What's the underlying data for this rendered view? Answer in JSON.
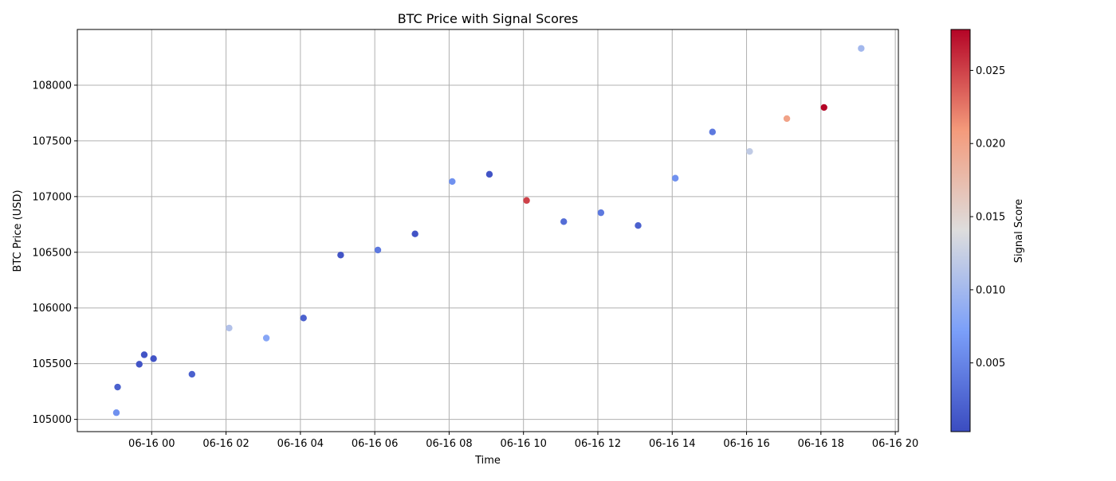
{
  "chart_data": {
    "type": "scatter",
    "title": "BTC Price with Signal Scores",
    "xlabel": "Time",
    "ylabel": "BTC Price (USD)",
    "grid": true,
    "colormap": "coolwarm",
    "colorbar": {
      "label": "Signal Score",
      "range": [
        0.0003,
        0.0278
      ],
      "ticks": [
        0.005,
        0.01,
        0.015,
        0.02,
        0.025
      ],
      "tick_labels": [
        "0.005",
        "0.010",
        "0.015",
        "0.020",
        "0.025"
      ]
    },
    "x_ticks": [
      {
        "value": "2025-06-16 00:00",
        "label": "06-16 00"
      },
      {
        "value": "2025-06-16 02:00",
        "label": "06-16 02"
      },
      {
        "value": "2025-06-16 04:00",
        "label": "06-16 04"
      },
      {
        "value": "2025-06-16 06:00",
        "label": "06-16 06"
      },
      {
        "value": "2025-06-16 08:00",
        "label": "06-16 08"
      },
      {
        "value": "2025-06-16 10:00",
        "label": "06-16 10"
      },
      {
        "value": "2025-06-16 12:00",
        "label": "06-16 12"
      },
      {
        "value": "2025-06-16 14:00",
        "label": "06-16 14"
      },
      {
        "value": "2025-06-16 16:00",
        "label": "06-16 16"
      },
      {
        "value": "2025-06-16 18:00",
        "label": "06-16 18"
      },
      {
        "value": "2025-06-16 20:00",
        "label": "06-16 20"
      }
    ],
    "y_ticks": [
      105000,
      105500,
      106000,
      106500,
      107000,
      107500,
      108000
    ],
    "y_tick_labels": [
      "105000",
      "105500",
      "106000",
      "106500",
      "107000",
      "107500",
      "108000"
    ],
    "xlim": [
      "2025-06-15 22:00",
      "2025-06-16 20:05"
    ],
    "ylim": [
      104890,
      108500
    ],
    "points": [
      {
        "time": "2025-06-15 23:03",
        "price": 105060,
        "score": 0.006
      },
      {
        "time": "2025-06-15 23:05",
        "price": 105290,
        "score": 0.002
      },
      {
        "time": "2025-06-15 23:40",
        "price": 105495,
        "score": 0.001
      },
      {
        "time": "2025-06-15 23:48",
        "price": 105580,
        "score": 0.001
      },
      {
        "time": "2025-06-16 00:03",
        "price": 105545,
        "score": 0.001
      },
      {
        "time": "2025-06-16 01:05",
        "price": 105405,
        "score": 0.002
      },
      {
        "time": "2025-06-16 02:05",
        "price": 105820,
        "score": 0.011
      },
      {
        "time": "2025-06-16 03:05",
        "price": 105730,
        "score": 0.008
      },
      {
        "time": "2025-06-16 04:05",
        "price": 105910,
        "score": 0.002
      },
      {
        "time": "2025-06-16 05:05",
        "price": 106475,
        "score": 0.001
      },
      {
        "time": "2025-06-16 06:05",
        "price": 106520,
        "score": 0.004
      },
      {
        "time": "2025-06-16 07:05",
        "price": 106665,
        "score": 0.001
      },
      {
        "time": "2025-06-16 08:05",
        "price": 107135,
        "score": 0.006
      },
      {
        "time": "2025-06-16 09:05",
        "price": 107200,
        "score": 0.001
      },
      {
        "time": "2025-06-16 10:05",
        "price": 106965,
        "score": 0.025
      },
      {
        "time": "2025-06-16 11:05",
        "price": 106775,
        "score": 0.003
      },
      {
        "time": "2025-06-16 12:05",
        "price": 106855,
        "score": 0.004
      },
      {
        "time": "2025-06-16 13:05",
        "price": 106740,
        "score": 0.002
      },
      {
        "time": "2025-06-16 14:05",
        "price": 107165,
        "score": 0.006
      },
      {
        "time": "2025-06-16 15:05",
        "price": 107580,
        "score": 0.004
      },
      {
        "time": "2025-06-16 16:05",
        "price": 107405,
        "score": 0.012
      },
      {
        "time": "2025-06-16 17:05",
        "price": 107700,
        "score": 0.02
      },
      {
        "time": "2025-06-16 18:05",
        "price": 107800,
        "score": 0.0278
      },
      {
        "time": "2025-06-16 19:05",
        "price": 108330,
        "score": 0.01
      }
    ]
  }
}
